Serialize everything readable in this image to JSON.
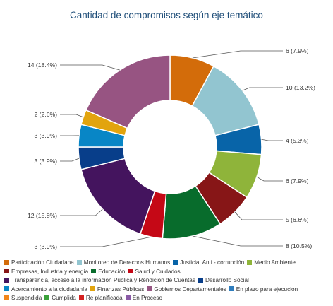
{
  "chart_data": {
    "type": "pie",
    "donut": true,
    "title": "Cantidad de compromisos según eje temático",
    "slices": [
      {
        "label": "6 (7.9%)",
        "value": 6,
        "color": "#d36c0a"
      },
      {
        "label": "10 (13.2%)",
        "value": 10,
        "color": "#92c5d0"
      },
      {
        "label": "4 (5.3%)",
        "value": 4,
        "color": "#0864a8"
      },
      {
        "label": "6 (7.9%)",
        "value": 6,
        "color": "#8fb43a"
      },
      {
        "label": "5 (6.6%)",
        "value": 5,
        "color": "#871617"
      },
      {
        "label": "8 (10.5%)",
        "value": 8,
        "color": "#086c2c"
      },
      {
        "label": "3 (3.9%)",
        "value": 3,
        "color": "#c50816"
      },
      {
        "label": "12 (15.8%)",
        "value": 12,
        "color": "#44145e"
      },
      {
        "label": "3 (3.9%)",
        "value": 3,
        "color": "#083e8a"
      },
      {
        "label": "3 (3.9%)",
        "value": 3,
        "color": "#0886c6"
      },
      {
        "label": "2 (2.6%)",
        "value": 2,
        "color": "#e2a40e"
      },
      {
        "label": "14 (18.4%)",
        "value": 14,
        "color": "#975482"
      }
    ],
    "legend": {
      "placement": "bottom",
      "rows": [
        [
          {
            "name": "Participación Ciudadana",
            "color": "#d36c0a"
          },
          {
            "name": "Monitoreo de Derechos Humanos",
            "color": "#92c5d0"
          },
          {
            "name": "Justicia, Anti - corrupción",
            "color": "#0864a8"
          },
          {
            "name": "Medio Ambiente",
            "color": "#8fb43a"
          }
        ],
        [
          {
            "name": "Empresas, Industria y energía",
            "color": "#871617"
          },
          {
            "name": "Educación",
            "color": "#086c2c"
          },
          {
            "name": "Salud y Cuidados",
            "color": "#c50816"
          }
        ],
        [
          {
            "name": "Transparencia, acceso a la información Pública y Rendición de Cuentas",
            "color": "#44145e"
          },
          {
            "name": "Desarrollo Social",
            "color": "#083e8a"
          }
        ],
        [
          {
            "name": "Acercamiento a la ciudadanía",
            "color": "#0886c6"
          },
          {
            "name": "Finanzas Públicas",
            "color": "#e2a40e"
          },
          {
            "name": "Gobiernos Departamentales",
            "color": "#975482"
          },
          {
            "name": "En plazo para ejecucion",
            "color": "#2e7dbd"
          }
        ],
        [
          {
            "name": "Suspendida",
            "color": "#f2861a"
          },
          {
            "name": "Cumplida",
            "color": "#3aa13a"
          },
          {
            "name": "Re planificada",
            "color": "#d42020"
          },
          {
            "name": "En Proceso",
            "color": "#8a5aa6"
          }
        ]
      ]
    }
  }
}
